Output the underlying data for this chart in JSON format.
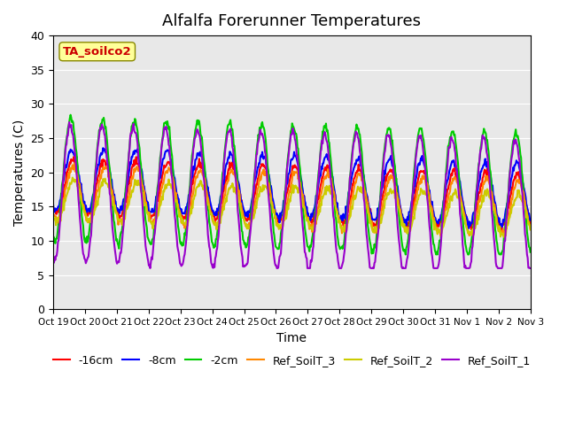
{
  "title": "Alfalfa Forerunner Temperatures",
  "xlabel": "Time",
  "ylabel": "Temperatures (C)",
  "ylim": [
    0,
    40
  ],
  "n_days": 15,
  "xtick_positions": [
    0,
    1,
    2,
    3,
    4,
    5,
    6,
    7,
    8,
    9,
    10,
    11,
    12,
    13,
    14,
    15
  ],
  "xtick_labels": [
    "Oct 19",
    "Oct 20",
    "Oct 21",
    "Oct 22",
    "Oct 23",
    "Oct 24",
    "Oct 25",
    "Oct 26",
    "Oct 27",
    "Oct 28",
    "Oct 29",
    "Oct 30",
    "Oct 31",
    "Nov 1",
    "Nov 2",
    "Nov 3"
  ],
  "ytick_positions": [
    0,
    5,
    10,
    15,
    20,
    25,
    30,
    35,
    40
  ],
  "ytick_labels": [
    "0",
    "5",
    "10",
    "15",
    "20",
    "25",
    "30",
    "35",
    "40"
  ],
  "series_names": [
    "-16cm",
    "-8cm",
    "-2cm",
    "Ref_SoilT_3",
    "Ref_SoilT_2",
    "Ref_SoilT_1"
  ],
  "series_colors": [
    "#ff0000",
    "#0000ff",
    "#00cc00",
    "#ff8800",
    "#cccc00",
    "#9900cc"
  ],
  "series_lw": [
    1.5,
    1.5,
    1.5,
    1.5,
    1.5,
    1.5
  ],
  "annotation_text": "TA_soilco2",
  "annotation_color": "#cc0000",
  "annotation_bg": "#ffff99",
  "annotation_edge": "#888800",
  "background_color": "#e8e8e8",
  "title_fontsize": 13,
  "axis_fontsize": 10,
  "tick_fontsize": 7.5,
  "legend_fontsize": 9
}
